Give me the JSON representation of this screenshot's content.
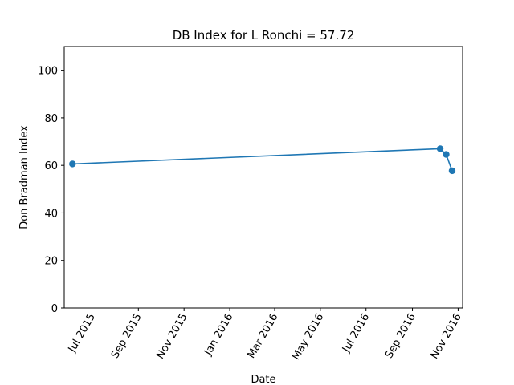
{
  "chart_data": {
    "type": "line",
    "title": "DB Index for L Ronchi = 57.72",
    "xlabel": "Date",
    "ylabel": "Don Bradman Index",
    "ylim": [
      0,
      110
    ],
    "xlim": [
      "2015-05-25",
      "2016-11-07"
    ],
    "x_ticks": [
      {
        "date": "2015-07-01",
        "label": "Jul 2015"
      },
      {
        "date": "2015-09-01",
        "label": "Sep 2015"
      },
      {
        "date": "2015-11-01",
        "label": "Nov 2015"
      },
      {
        "date": "2016-01-01",
        "label": "Jan 2016"
      },
      {
        "date": "2016-03-01",
        "label": "Mar 2016"
      },
      {
        "date": "2016-05-01",
        "label": "May 2016"
      },
      {
        "date": "2016-07-01",
        "label": "Jul 2016"
      },
      {
        "date": "2016-09-01",
        "label": "Sep 2016"
      },
      {
        "date": "2016-11-01",
        "label": "Nov 2016"
      }
    ],
    "y_ticks": [
      0,
      20,
      40,
      60,
      80,
      100
    ],
    "series": [
      {
        "color": "#1f77b4",
        "marker": "circle",
        "points": [
          {
            "x": "2015-06-05",
            "y": 60.6
          },
          {
            "x": "2016-10-08",
            "y": 67.0
          },
          {
            "x": "2016-10-16",
            "y": 64.6
          },
          {
            "x": "2016-10-24",
            "y": 57.72
          }
        ]
      }
    ],
    "grid": false
  }
}
